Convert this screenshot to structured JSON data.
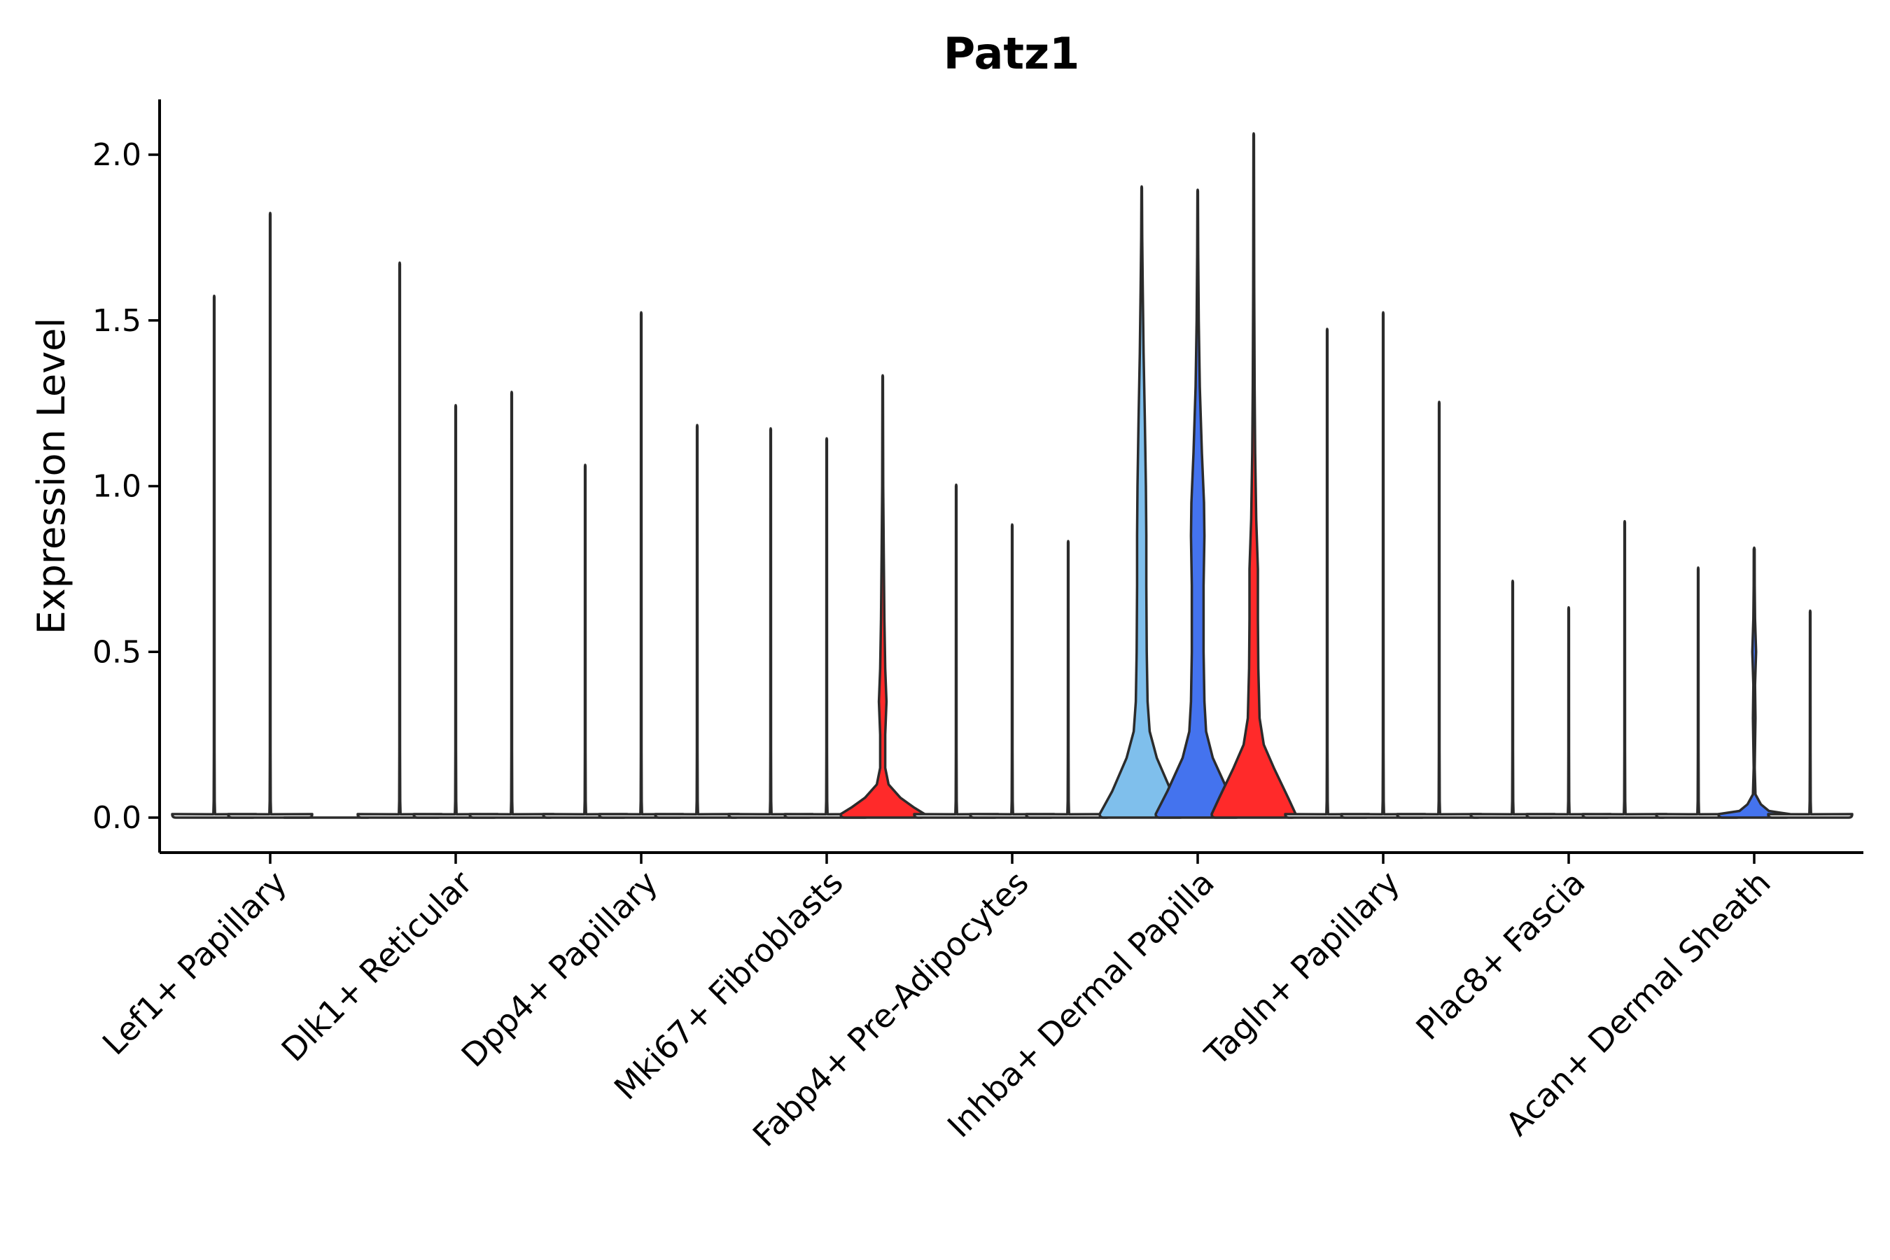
{
  "chart_data": {
    "type": "violin",
    "title": "Patz1",
    "xlabel": "",
    "ylabel": "Expression Level",
    "ylim": [
      -0.1,
      2.17
    ],
    "yticks": [
      0.0,
      0.5,
      1.0,
      1.5,
      2.0
    ],
    "ytick_labels": [
      "0.0",
      "0.5",
      "1.0",
      "1.5",
      "2.0"
    ],
    "grid": false,
    "legend": "none",
    "categories": [
      "Lef1+ Papillary",
      "Dlk1+ Reticular",
      "Dpp4+ Papillary",
      "Mki67+ Fibroblasts",
      "Fabp4+ Pre-Adipocytes",
      "Inhba+ Dermal Papilla",
      "Tagln+ Papillary",
      "Plac8+ Fascia",
      "Acan+ Dermal Sheath"
    ],
    "violins": [
      {
        "category_index": 0,
        "sub_index": 0,
        "max": 1.57,
        "color": "#ffffff",
        "profile": [
          [
            0,
            1
          ],
          [
            0.01,
            0.02
          ],
          [
            0.05,
            0.012
          ],
          [
            0.2,
            0.008
          ],
          [
            1.57,
            0.006
          ]
        ]
      },
      {
        "category_index": 0,
        "sub_index": 1,
        "max": 1.82,
        "color": "#ffffff",
        "profile": [
          [
            0,
            1
          ],
          [
            0.01,
            0.02
          ],
          [
            0.05,
            0.012
          ],
          [
            0.2,
            0.008
          ],
          [
            1.82,
            0.006
          ]
        ]
      },
      {
        "category_index": 0,
        "sub_index": 2,
        "max": 0.0,
        "color": "#ffffff",
        "profile": [
          [
            0,
            1
          ]
        ]
      },
      {
        "category_index": 1,
        "sub_index": 0,
        "max": 1.67,
        "color": "#ffffff",
        "profile": [
          [
            0,
            1
          ],
          [
            0.01,
            0.02
          ],
          [
            0.05,
            0.012
          ],
          [
            0.2,
            0.008
          ],
          [
            1.67,
            0.006
          ]
        ]
      },
      {
        "category_index": 1,
        "sub_index": 1,
        "max": 1.24,
        "color": "#ffffff",
        "profile": [
          [
            0,
            1
          ],
          [
            0.01,
            0.02
          ],
          [
            0.05,
            0.012
          ],
          [
            0.2,
            0.008
          ],
          [
            1.24,
            0.006
          ]
        ]
      },
      {
        "category_index": 1,
        "sub_index": 2,
        "max": 1.28,
        "color": "#ffffff",
        "profile": [
          [
            0,
            1
          ],
          [
            0.01,
            0.02
          ],
          [
            0.05,
            0.012
          ],
          [
            0.2,
            0.008
          ],
          [
            1.28,
            0.006
          ]
        ]
      },
      {
        "category_index": 2,
        "sub_index": 0,
        "max": 1.06,
        "color": "#ffffff",
        "profile": [
          [
            0,
            1
          ],
          [
            0.01,
            0.02
          ],
          [
            0.05,
            0.012
          ],
          [
            0.2,
            0.008
          ],
          [
            1.06,
            0.006
          ]
        ]
      },
      {
        "category_index": 2,
        "sub_index": 1,
        "max": 1.52,
        "color": "#ffffff",
        "profile": [
          [
            0,
            1
          ],
          [
            0.01,
            0.02
          ],
          [
            0.05,
            0.012
          ],
          [
            0.2,
            0.008
          ],
          [
            1.52,
            0.006
          ]
        ]
      },
      {
        "category_index": 2,
        "sub_index": 2,
        "max": 1.18,
        "color": "#ffffff",
        "profile": [
          [
            0,
            1
          ],
          [
            0.01,
            0.02
          ],
          [
            0.05,
            0.012
          ],
          [
            0.2,
            0.008
          ],
          [
            1.18,
            0.006
          ]
        ]
      },
      {
        "category_index": 3,
        "sub_index": 0,
        "max": 1.17,
        "color": "#ffffff",
        "profile": [
          [
            0,
            1
          ],
          [
            0.01,
            0.02
          ],
          [
            0.05,
            0.012
          ],
          [
            0.2,
            0.008
          ],
          [
            1.17,
            0.006
          ]
        ]
      },
      {
        "category_index": 3,
        "sub_index": 1,
        "max": 1.14,
        "color": "#ffffff",
        "profile": [
          [
            0,
            1
          ],
          [
            0.01,
            0.02
          ],
          [
            0.05,
            0.012
          ],
          [
            0.2,
            0.008
          ],
          [
            1.14,
            0.006
          ]
        ]
      },
      {
        "category_index": 3,
        "sub_index": 2,
        "max": 1.33,
        "color": "#ff2a2a",
        "profile": [
          [
            0,
            1
          ],
          [
            0.03,
            0.75
          ],
          [
            0.06,
            0.42
          ],
          [
            0.1,
            0.14
          ],
          [
            0.15,
            0.06
          ],
          [
            0.25,
            0.06
          ],
          [
            0.35,
            0.09
          ],
          [
            0.45,
            0.06
          ],
          [
            0.6,
            0.04
          ],
          [
            0.8,
            0.025
          ],
          [
            1.0,
            0.012
          ],
          [
            1.33,
            0.006
          ]
        ]
      },
      {
        "category_index": 4,
        "sub_index": 0,
        "max": 1.0,
        "color": "#ffffff",
        "profile": [
          [
            0,
            1
          ],
          [
            0.01,
            0.02
          ],
          [
            0.05,
            0.012
          ],
          [
            0.2,
            0.008
          ],
          [
            1.0,
            0.006
          ]
        ]
      },
      {
        "category_index": 4,
        "sub_index": 1,
        "max": 0.88,
        "color": "#ffffff",
        "profile": [
          [
            0,
            1
          ],
          [
            0.01,
            0.02
          ],
          [
            0.05,
            0.012
          ],
          [
            0.2,
            0.008
          ],
          [
            0.88,
            0.006
          ]
        ]
      },
      {
        "category_index": 4,
        "sub_index": 2,
        "max": 0.83,
        "color": "#ffffff",
        "profile": [
          [
            0,
            1
          ],
          [
            0.01,
            0.02
          ],
          [
            0.05,
            0.012
          ],
          [
            0.2,
            0.008
          ],
          [
            0.83,
            0.006
          ]
        ]
      },
      {
        "category_index": 5,
        "sub_index": 0,
        "max": 1.9,
        "color": "#7fbfec",
        "profile": [
          [
            0,
            1
          ],
          [
            0.08,
            0.7
          ],
          [
            0.18,
            0.36
          ],
          [
            0.26,
            0.19
          ],
          [
            0.35,
            0.14
          ],
          [
            0.5,
            0.12
          ],
          [
            0.7,
            0.11
          ],
          [
            0.85,
            0.11
          ],
          [
            1.0,
            0.1
          ],
          [
            1.2,
            0.075
          ],
          [
            1.4,
            0.045
          ],
          [
            1.6,
            0.025
          ],
          [
            1.75,
            0.012
          ],
          [
            1.9,
            0.006
          ]
        ]
      },
      {
        "category_index": 5,
        "sub_index": 1,
        "max": 1.89,
        "color": "#4473ee",
        "profile": [
          [
            0,
            1
          ],
          [
            0.08,
            0.72
          ],
          [
            0.18,
            0.36
          ],
          [
            0.26,
            0.2
          ],
          [
            0.35,
            0.16
          ],
          [
            0.5,
            0.14
          ],
          [
            0.7,
            0.14
          ],
          [
            0.85,
            0.16
          ],
          [
            0.95,
            0.15
          ],
          [
            1.1,
            0.1
          ],
          [
            1.3,
            0.05
          ],
          [
            1.5,
            0.025
          ],
          [
            1.7,
            0.012
          ],
          [
            1.89,
            0.006
          ]
        ]
      },
      {
        "category_index": 5,
        "sub_index": 2,
        "max": 2.06,
        "color": "#ff2a2a",
        "profile": [
          [
            0,
            1
          ],
          [
            0.06,
            0.82
          ],
          [
            0.15,
            0.48
          ],
          [
            0.22,
            0.24
          ],
          [
            0.3,
            0.14
          ],
          [
            0.45,
            0.11
          ],
          [
            0.6,
            0.1
          ],
          [
            0.75,
            0.1
          ],
          [
            0.9,
            0.06
          ],
          [
            1.1,
            0.035
          ],
          [
            1.3,
            0.022
          ],
          [
            1.6,
            0.012
          ],
          [
            2.06,
            0.006
          ]
        ]
      },
      {
        "category_index": 6,
        "sub_index": 0,
        "max": 1.47,
        "color": "#ffffff",
        "profile": [
          [
            0,
            1
          ],
          [
            0.01,
            0.02
          ],
          [
            0.05,
            0.012
          ],
          [
            0.2,
            0.008
          ],
          [
            1.47,
            0.006
          ]
        ]
      },
      {
        "category_index": 6,
        "sub_index": 1,
        "max": 1.52,
        "color": "#ffffff",
        "profile": [
          [
            0,
            1
          ],
          [
            0.01,
            0.02
          ],
          [
            0.05,
            0.012
          ],
          [
            0.2,
            0.008
          ],
          [
            1.52,
            0.006
          ]
        ]
      },
      {
        "category_index": 6,
        "sub_index": 2,
        "max": 1.25,
        "color": "#ffffff",
        "profile": [
          [
            0,
            1
          ],
          [
            0.01,
            0.02
          ],
          [
            0.05,
            0.012
          ],
          [
            0.2,
            0.008
          ],
          [
            1.25,
            0.006
          ]
        ]
      },
      {
        "category_index": 7,
        "sub_index": 0,
        "max": 0.71,
        "color": "#ffffff",
        "profile": [
          [
            0,
            1
          ],
          [
            0.01,
            0.02
          ],
          [
            0.05,
            0.012
          ],
          [
            0.2,
            0.008
          ],
          [
            0.71,
            0.006
          ]
        ]
      },
      {
        "category_index": 7,
        "sub_index": 1,
        "max": 0.63,
        "color": "#ffffff",
        "profile": [
          [
            0,
            1
          ],
          [
            0.01,
            0.02
          ],
          [
            0.05,
            0.012
          ],
          [
            0.2,
            0.008
          ],
          [
            0.63,
            0.006
          ]
        ]
      },
      {
        "category_index": 7,
        "sub_index": 2,
        "max": 0.89,
        "color": "#ffffff",
        "profile": [
          [
            0,
            1
          ],
          [
            0.01,
            0.02
          ],
          [
            0.05,
            0.012
          ],
          [
            0.2,
            0.008
          ],
          [
            0.89,
            0.006
          ]
        ]
      },
      {
        "category_index": 8,
        "sub_index": 0,
        "max": 0.75,
        "color": "#ffffff",
        "profile": [
          [
            0,
            1
          ],
          [
            0.01,
            0.02
          ],
          [
            0.05,
            0.012
          ],
          [
            0.2,
            0.008
          ],
          [
            0.75,
            0.006
          ]
        ]
      },
      {
        "category_index": 8,
        "sub_index": 1,
        "max": 0.81,
        "color": "#4473ee",
        "profile": [
          [
            0,
            0.85
          ],
          [
            0.02,
            0.35
          ],
          [
            0.04,
            0.16
          ],
          [
            0.07,
            0.03
          ],
          [
            0.15,
            0.012
          ],
          [
            0.3,
            0.03
          ],
          [
            0.4,
            0.02
          ],
          [
            0.5,
            0.045
          ],
          [
            0.6,
            0.02
          ],
          [
            0.7,
            0.012
          ],
          [
            0.81,
            0.01
          ]
        ]
      },
      {
        "category_index": 8,
        "sub_index": 2,
        "max": 0.62,
        "color": "#ffffff",
        "profile": [
          [
            0,
            1
          ],
          [
            0.01,
            0.02
          ],
          [
            0.05,
            0.012
          ],
          [
            0.2,
            0.008
          ],
          [
            0.62,
            0.006
          ]
        ]
      }
    ]
  }
}
